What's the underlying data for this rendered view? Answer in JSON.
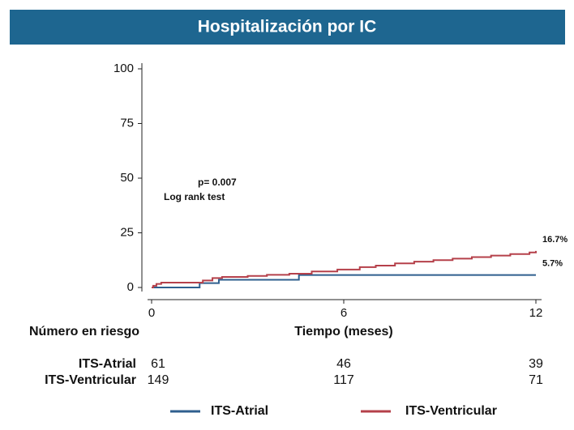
{
  "chart_data": {
    "type": "step",
    "title": "Hospitalización por IC",
    "x_label": "Tiempo (meses)",
    "annotations": [
      "p= 0.007",
      "Log rank test"
    ],
    "xlim": [
      0,
      12.3
    ],
    "xticks": [
      0,
      6,
      12
    ],
    "ylim": [
      0,
      100
    ],
    "yticks": [
      0,
      25,
      50,
      75,
      100
    ],
    "legend": "bottom",
    "series": [
      {
        "name": "ITS-Atrial",
        "color": "#2f5f8e",
        "x": [
          0,
          1.5,
          2.1,
          4.6,
          12
        ],
        "values": [
          0,
          2,
          3.5,
          5.7,
          5.7
        ],
        "value_labels": [
          null,
          null,
          null,
          null,
          "5.7%"
        ]
      },
      {
        "name": "ITS-Ventricular",
        "color": "#b5404a",
        "x": [
          0,
          0.05,
          0.15,
          0.3,
          1.6,
          1.9,
          2.2,
          3.0,
          3.6,
          4.3,
          5.0,
          5.8,
          6.5,
          7.0,
          7.6,
          8.2,
          8.8,
          9.4,
          10.0,
          10.6,
          11.2,
          11.8,
          12
        ],
        "values": [
          0,
          0.8,
          1.6,
          2.2,
          3.2,
          4.3,
          4.8,
          5.3,
          5.8,
          6.3,
          7.3,
          8.2,
          9.3,
          10.0,
          11.0,
          11.8,
          12.5,
          13.2,
          13.9,
          14.6,
          15.3,
          16.0,
          16.7
        ],
        "value_labels": [
          null,
          null,
          null,
          null,
          null,
          null,
          null,
          null,
          null,
          null,
          null,
          null,
          null,
          null,
          null,
          null,
          null,
          null,
          null,
          null,
          null,
          null,
          "16.7%"
        ]
      }
    ],
    "risk_table": {
      "title": "Número en riesgo",
      "rows": [
        {
          "name": "ITS-Atrial",
          "counts": [
            61,
            46,
            39
          ]
        },
        {
          "name": "ITS-Ventricular",
          "counts": [
            149,
            117,
            71
          ]
        }
      ]
    }
  }
}
